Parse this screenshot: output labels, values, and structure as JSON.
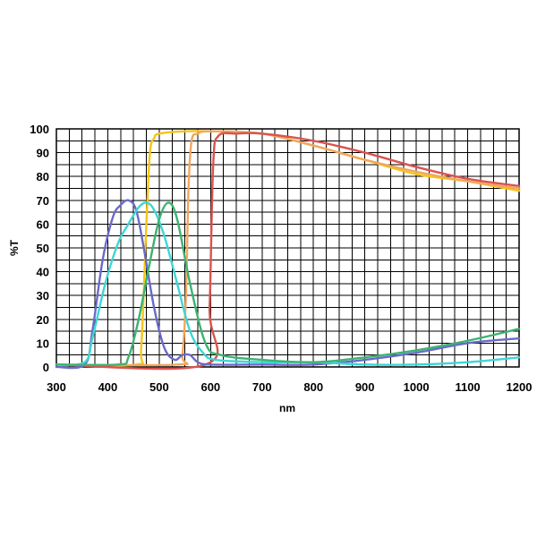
{
  "chart_data": {
    "type": "line",
    "title": "",
    "xlabel": "nm",
    "ylabel": "%T",
    "xlim": [
      300,
      1200
    ],
    "ylim": [
      0,
      100
    ],
    "x_ticks": [
      300,
      400,
      500,
      600,
      700,
      800,
      900,
      1000,
      1100,
      1200
    ],
    "y_ticks": [
      0,
      10,
      20,
      30,
      40,
      50,
      60,
      70,
      80,
      90,
      100
    ],
    "grid": true,
    "legend": "none",
    "series": [
      {
        "color": "#f5c518",
        "points": [
          [
            300,
            1
          ],
          [
            455,
            1
          ],
          [
            465,
            8
          ],
          [
            475,
            60
          ],
          [
            482,
            90
          ],
          [
            490,
            96
          ],
          [
            500,
            98
          ],
          [
            550,
            99
          ],
          [
            600,
            99
          ],
          [
            700,
            98
          ],
          [
            800,
            93
          ],
          [
            900,
            87
          ],
          [
            1000,
            81
          ],
          [
            1100,
            78
          ],
          [
            1150,
            76
          ],
          [
            1200,
            74
          ]
        ]
      },
      {
        "color": "#f2a65e",
        "points": [
          [
            300,
            1
          ],
          [
            535,
            1
          ],
          [
            545,
            5
          ],
          [
            552,
            30
          ],
          [
            557,
            75
          ],
          [
            563,
            95
          ],
          [
            575,
            98
          ],
          [
            600,
            99
          ],
          [
            700,
            98
          ],
          [
            800,
            93
          ],
          [
            900,
            87
          ],
          [
            1000,
            82
          ],
          [
            1100,
            78
          ],
          [
            1200,
            75
          ]
        ]
      },
      {
        "color": "#d9534f",
        "points": [
          [
            300,
            1
          ],
          [
            590,
            1
          ],
          [
            598,
            25
          ],
          [
            605,
            85
          ],
          [
            615,
            97
          ],
          [
            650,
            98
          ],
          [
            700,
            98
          ],
          [
            800,
            95
          ],
          [
            900,
            90
          ],
          [
            1000,
            84
          ],
          [
            1100,
            79
          ],
          [
            1200,
            76
          ]
        ]
      },
      {
        "color": "#6a6ac8",
        "points": [
          [
            300,
            0
          ],
          [
            355,
            1
          ],
          [
            370,
            15
          ],
          [
            390,
            45
          ],
          [
            410,
            63
          ],
          [
            425,
            68
          ],
          [
            440,
            70
          ],
          [
            455,
            66
          ],
          [
            470,
            50
          ],
          [
            490,
            25
          ],
          [
            510,
            8
          ],
          [
            530,
            3
          ],
          [
            545,
            5
          ],
          [
            560,
            5
          ],
          [
            575,
            2
          ],
          [
            600,
            1
          ],
          [
            700,
            1
          ],
          [
            800,
            1
          ],
          [
            900,
            3
          ],
          [
            1000,
            6
          ],
          [
            1100,
            10
          ],
          [
            1200,
            12
          ]
        ]
      },
      {
        "color": "#3dd6d6",
        "points": [
          [
            300,
            1
          ],
          [
            355,
            2
          ],
          [
            370,
            12
          ],
          [
            395,
            35
          ],
          [
            420,
            52
          ],
          [
            440,
            60
          ],
          [
            460,
            67
          ],
          [
            475,
            69
          ],
          [
            490,
            66
          ],
          [
            510,
            55
          ],
          [
            535,
            35
          ],
          [
            560,
            15
          ],
          [
            585,
            6
          ],
          [
            610,
            3
          ],
          [
            700,
            2
          ],
          [
            800,
            2
          ],
          [
            900,
            1
          ],
          [
            1000,
            1
          ],
          [
            1100,
            2
          ],
          [
            1200,
            4
          ]
        ]
      },
      {
        "color": "#3cb371",
        "points": [
          [
            300,
            1
          ],
          [
            420,
            1
          ],
          [
            440,
            4
          ],
          [
            460,
            20
          ],
          [
            480,
            42
          ],
          [
            500,
            62
          ],
          [
            518,
            69
          ],
          [
            535,
            62
          ],
          [
            560,
            35
          ],
          [
            590,
            10
          ],
          [
            620,
            5
          ],
          [
            700,
            3
          ],
          [
            800,
            2
          ],
          [
            900,
            4
          ],
          [
            1000,
            7
          ],
          [
            1100,
            11
          ],
          [
            1200,
            16
          ]
        ]
      }
    ]
  }
}
